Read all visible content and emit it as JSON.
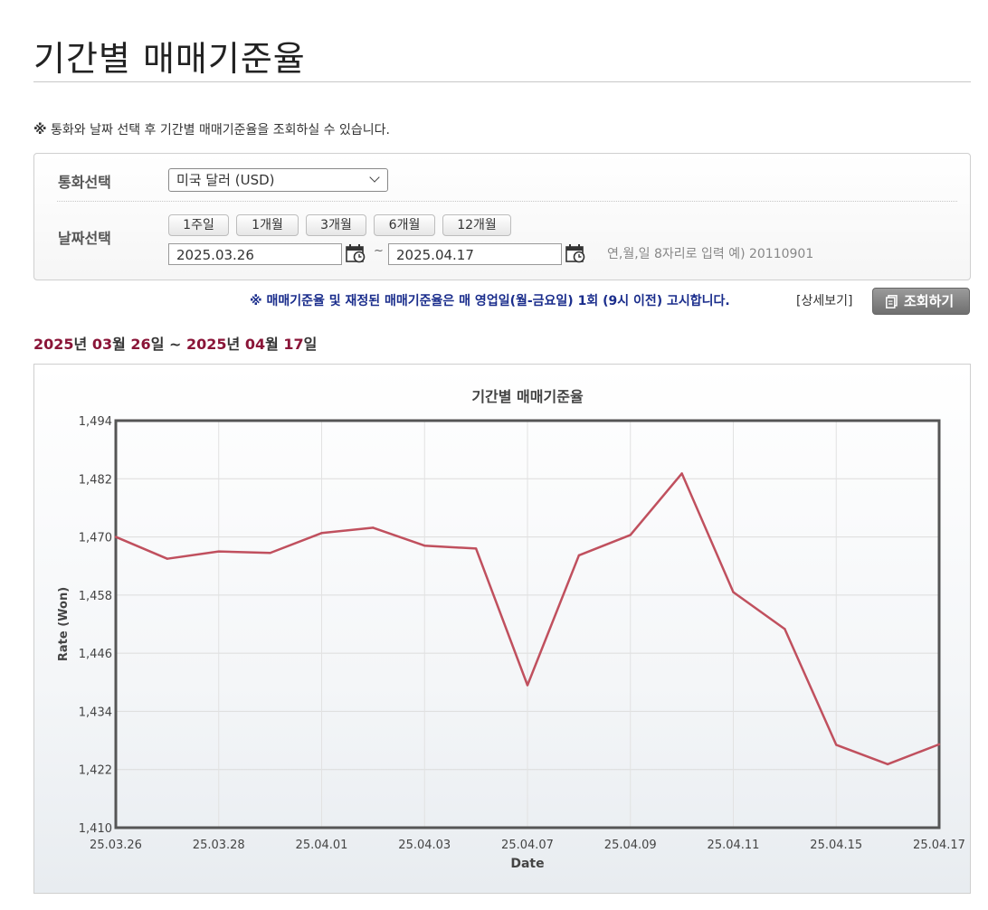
{
  "page": {
    "title": "기간별 매매기준율"
  },
  "notice": {
    "mark": "※",
    "text": " 통화와 날짜 선택 후 기간별 매매기준율을 조회하실 수 있습니다."
  },
  "search": {
    "currency_label": "통화선택",
    "currency_value": "미국 달러 (USD)",
    "date_label": "날짜선택",
    "period_buttons": [
      "1주일",
      "1개월",
      "3개월",
      "6개월",
      "12개월"
    ],
    "start_date": "2025.03.26",
    "end_date": "2025.04.17",
    "tilde": "~",
    "date_hint": "연,월,일 8자리로 입력 예) 20110901"
  },
  "warning": "※ 매매기준율 및 재정된 매매기준율은 매 영업일(월-금요일) 1회 (9시 이전) 고시합니다.",
  "detail_link": "[상세보기]",
  "query_button": "조회하기",
  "range": {
    "start_year": "2025",
    "start_month": "03",
    "start_day": "26",
    "end_year": "2025",
    "end_month": "04",
    "end_day": "17",
    "year_unit": "년",
    "month_unit": "월",
    "day_unit": "일",
    "sep": " ~ "
  },
  "colors": {
    "line": "#c0505e",
    "accent": "#8a1538",
    "warning": "#1a2d8c"
  },
  "chart_data": {
    "type": "line",
    "title": "기간별 매매기준율",
    "xlabel": "Date",
    "ylabel": "Rate (Won)",
    "ylim": [
      1410,
      1494
    ],
    "yticks": [
      "1,410",
      "1,422",
      "1,434",
      "1,446",
      "1,458",
      "1,470",
      "1,482",
      "1,494"
    ],
    "x_tick_labels": [
      "25.03.26",
      "25.03.28",
      "25.04.01",
      "25.04.03",
      "25.04.07",
      "25.04.09",
      "25.04.11",
      "25.04.15",
      "25.04.17"
    ],
    "x": [
      "25.03.26",
      "25.03.27",
      "25.03.28",
      "25.03.31",
      "25.04.01",
      "25.04.02",
      "25.04.03",
      "25.04.04",
      "25.04.07",
      "25.04.08",
      "25.04.09",
      "25.04.10",
      "25.04.11",
      "25.04.14",
      "25.04.15",
      "25.04.16",
      "25.04.17"
    ],
    "series": [
      {
        "values": [
          1470.0,
          1465.5,
          1467.0,
          1466.7,
          1470.8,
          1471.9,
          1468.2,
          1467.6,
          1439.4,
          1466.2,
          1470.4,
          1483.1,
          1458.6,
          1451.0,
          1427.1,
          1423.1,
          1427.2
        ]
      }
    ],
    "grid": true,
    "legend": "none"
  }
}
